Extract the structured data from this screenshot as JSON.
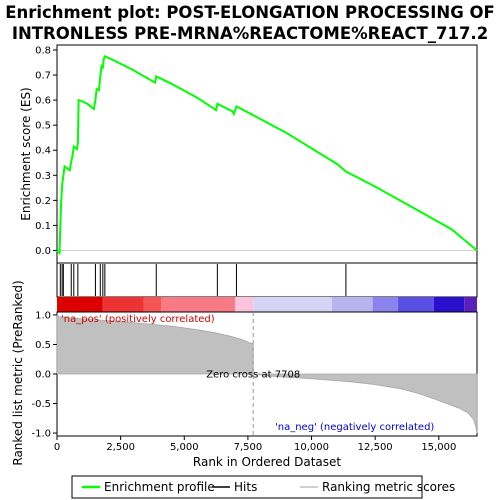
{
  "title_line1": "Enrichment plot: POST-ELONGATION PROCESSING OF",
  "title_line2": "INTRONLESS PRE-MRNA%REACTOME%REACT_717.2",
  "chart_data": {
    "type": "line",
    "es_panel": {
      "ylabel": "Enrichment score (ES)",
      "ylim": [
        -0.05,
        0.82
      ],
      "yticks": [
        0.0,
        0.1,
        0.2,
        0.3,
        0.4,
        0.5,
        0.6,
        0.7,
        0.8
      ],
      "ytick_labels": [
        "0.0",
        "0.1",
        "0.2",
        "0.3",
        "0.4",
        "0.5",
        "0.6",
        "0.7",
        "0.8"
      ],
      "series": [
        {
          "name": "Enrichment profile",
          "color": "#00ff00",
          "x": [
            0,
            100,
            130,
            160,
            200,
            250,
            300,
            500,
            560,
            620,
            660,
            780,
            820,
            850,
            1000,
            1200,
            1450,
            1510,
            1560,
            1650,
            1700,
            1750,
            1800,
            1840,
            1880,
            2200,
            3000,
            3850,
            3900,
            4500,
            5500,
            6250,
            6300,
            6900,
            6950,
            7050,
            7708,
            9000,
            11000,
            11350,
            12500,
            14000,
            15500,
            16500
          ],
          "y": [
            0.0,
            -0.01,
            0.09,
            0.19,
            0.26,
            0.3,
            0.335,
            0.32,
            0.355,
            0.385,
            0.415,
            0.405,
            0.43,
            0.6,
            0.595,
            0.585,
            0.565,
            0.6,
            0.645,
            0.64,
            0.695,
            0.735,
            0.73,
            0.765,
            0.775,
            0.76,
            0.72,
            0.67,
            0.695,
            0.665,
            0.61,
            0.56,
            0.585,
            0.555,
            0.545,
            0.575,
            0.54,
            0.47,
            0.345,
            0.315,
            0.255,
            0.17,
            0.085,
            0.0
          ]
        }
      ]
    },
    "hits": [
      130,
      200,
      250,
      560,
      660,
      820,
      1510,
      1700,
      1800,
      1880,
      3900,
      6300,
      7050,
      11350
    ],
    "metric_panel": {
      "ylabel": "Ranked list metric (PreRanked)",
      "xlabel": "Rank in Ordered Dataset",
      "ylim": [
        -1.05,
        1.05
      ],
      "yticks": [
        -1.0,
        -0.5,
        0.0,
        0.5,
        1.0
      ],
      "ytick_labels": [
        "-1.0",
        "-0.5",
        "0.0",
        "0.5",
        "1.0"
      ],
      "series_name": "Ranking metric scores",
      "x": [
        0,
        80,
        500,
        1500,
        3000,
        4500,
        5500,
        6200,
        6800,
        7300,
        7600,
        7708,
        8500,
        10000,
        11500,
        12500,
        13500,
        14200,
        14800,
        15300,
        15800,
        16150,
        16350,
        16450,
        16500
      ],
      "y": [
        1.0,
        0.97,
        0.95,
        0.92,
        0.87,
        0.81,
        0.75,
        0.7,
        0.64,
        0.58,
        0.52,
        0.0,
        -0.04,
        -0.08,
        -0.13,
        -0.18,
        -0.25,
        -0.33,
        -0.42,
        -0.5,
        -0.58,
        -0.66,
        -0.76,
        -0.88,
        -1.0
      ]
    },
    "xlim": [
      0,
      16500
    ],
    "xticks": [
      0,
      2500,
      5000,
      7500,
      10000,
      12500,
      15000
    ],
    "xtick_labels": [
      "0",
      "2,500",
      "5,000",
      "7,500",
      "10,000",
      "12,500",
      "15,000"
    ],
    "zero_cross": 7708,
    "zero_cross_label": "Zero cross at 7708",
    "pos_label": "'na_pos' (positively correlated)",
    "neg_label": "'na_neg' (negatively correlated)",
    "gradient_bar": [
      {
        "from": 0,
        "to": 1800,
        "color": "#dd0000"
      },
      {
        "from": 1800,
        "to": 3400,
        "color": "#ee3333"
      },
      {
        "from": 3400,
        "to": 4100,
        "color": "#f45555"
      },
      {
        "from": 4100,
        "to": 7000,
        "color": "#f77a84"
      },
      {
        "from": 7000,
        "to": 7708,
        "color": "#fbc4dc"
      },
      {
        "from": 7708,
        "to": 10800,
        "color": "#d6d4f4"
      },
      {
        "from": 10800,
        "to": 12400,
        "color": "#b8b4ee"
      },
      {
        "from": 12400,
        "to": 13400,
        "color": "#8a84ec"
      },
      {
        "from": 13400,
        "to": 14800,
        "color": "#5a4fe4"
      },
      {
        "from": 14800,
        "to": 16000,
        "color": "#2a10cc"
      },
      {
        "from": 16000,
        "to": 16500,
        "color": "#5a20b8"
      }
    ],
    "legend": [
      {
        "label": "Enrichment profile",
        "color": "#00ff00"
      },
      {
        "label": "Hits",
        "color": "#000000"
      },
      {
        "label": "Ranking metric scores",
        "color": "#c0c0c0"
      }
    ]
  }
}
